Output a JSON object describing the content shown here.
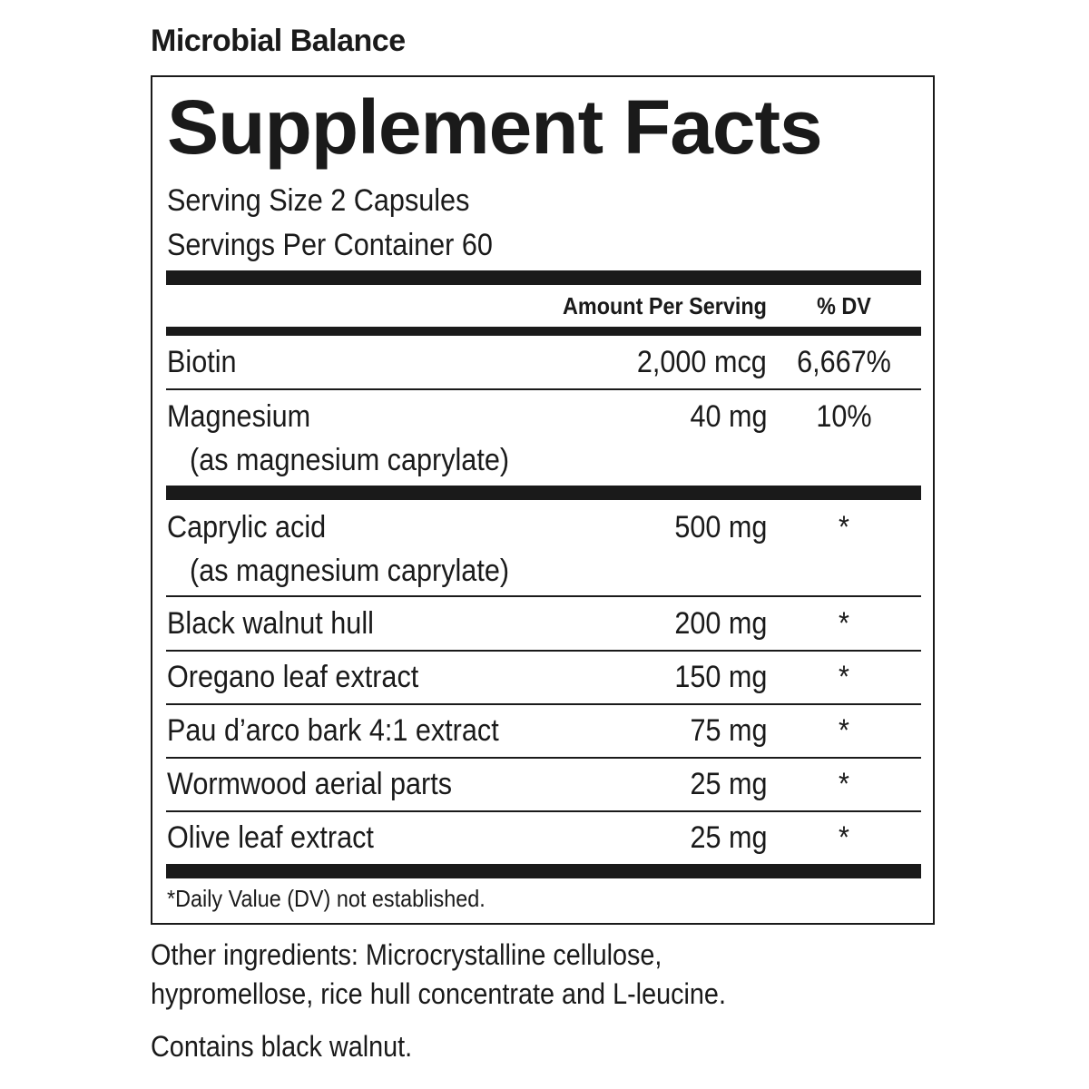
{
  "product": "Microbial Balance",
  "title": "Supplement Facts",
  "serving_size": "Serving Size 2 Capsules",
  "servings_per_container": "Servings Per Container 60",
  "headers": {
    "amount": "Amount Per Serving",
    "dv": "% DV"
  },
  "rows": [
    {
      "name": "Biotin",
      "amount": "2,000 mcg",
      "dv": "6,667%"
    },
    {
      "name": "Magnesium",
      "sub": "(as magnesium caprylate)",
      "amount": "40 mg",
      "dv": "10%"
    },
    {
      "name": "Caprylic acid",
      "sub": "(as magnesium caprylate)",
      "amount": "500 mg",
      "dv": "*"
    },
    {
      "name": "Black walnut hull",
      "amount": "200 mg",
      "dv": "*"
    },
    {
      "name": "Oregano leaf extract",
      "amount": "150 mg",
      "dv": "*"
    },
    {
      "name": "Pau d’arco bark 4:1 extract",
      "amount": "75 mg",
      "dv": "*"
    },
    {
      "name": "Wormwood aerial parts",
      "amount": "25 mg",
      "dv": "*"
    },
    {
      "name": "Olive leaf extract",
      "amount": "25 mg",
      "dv": "*"
    }
  ],
  "footnote": "*Daily Value (DV) not established.",
  "other_ingredients_1": "Other ingredients: Microcrystalline cellulose,",
  "other_ingredients_2": "hypromellose, rice hull concentrate and L-leucine.",
  "allergen": "Contains black walnut."
}
